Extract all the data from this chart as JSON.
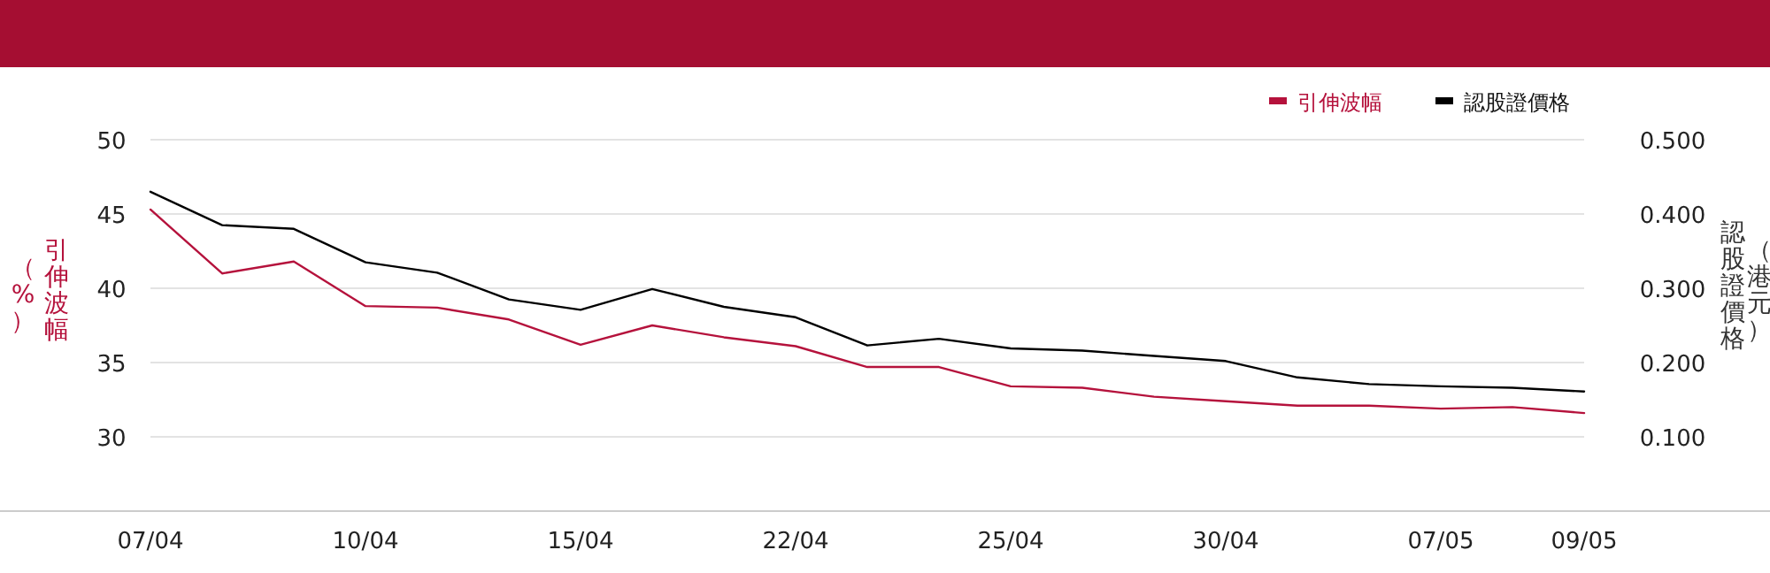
{
  "chart_data": {
    "type": "line",
    "categories": [
      "07/04",
      null,
      null,
      "10/04",
      null,
      null,
      "15/04",
      null,
      null,
      "22/04",
      null,
      null,
      "25/04",
      null,
      null,
      "30/04",
      null,
      null,
      "07/05",
      null,
      "09/05"
    ],
    "series": [
      {
        "name": "引伸波幅",
        "color": "#b5123c",
        "values": [
          45.3,
          41.0,
          41.8,
          38.8,
          38.7,
          37.9,
          36.2,
          37.5,
          36.7,
          36.1,
          34.7,
          34.7,
          33.4,
          33.3,
          32.7,
          32.4,
          32.1,
          32.1,
          31.9,
          32.0,
          31.6
        ]
      },
      {
        "name": "認股證價格",
        "color": "#000000",
        "axis": "y2",
        "values": [
          0.43,
          0.385,
          0.38,
          0.335,
          0.321,
          0.285,
          0.271,
          0.299,
          0.275,
          0.261,
          0.223,
          0.232,
          0.219,
          0.216,
          0.209,
          0.202,
          0.18,
          0.171,
          0.168,
          0.166,
          0.161
        ]
      }
    ],
    "ylabel": "引伸波幅（%）",
    "y2label": "認股證價格（港元）",
    "ylim": [
      25,
      50
    ],
    "yticks": [
      30,
      35,
      40,
      45,
      50
    ],
    "y2lim": [
      0,
      0.5
    ],
    "y2ticks": [
      {
        "value": 0.1,
        "label": "0.100"
      },
      {
        "value": 0.2,
        "label": "0.200"
      },
      {
        "value": 0.3,
        "label": "0.300"
      },
      {
        "value": 0.4,
        "label": "0.400"
      },
      {
        "value": 0.5,
        "label": "0.500"
      }
    ],
    "grid": "y",
    "legend": "top right",
    "marker": "none",
    "line_style": "solid"
  }
}
